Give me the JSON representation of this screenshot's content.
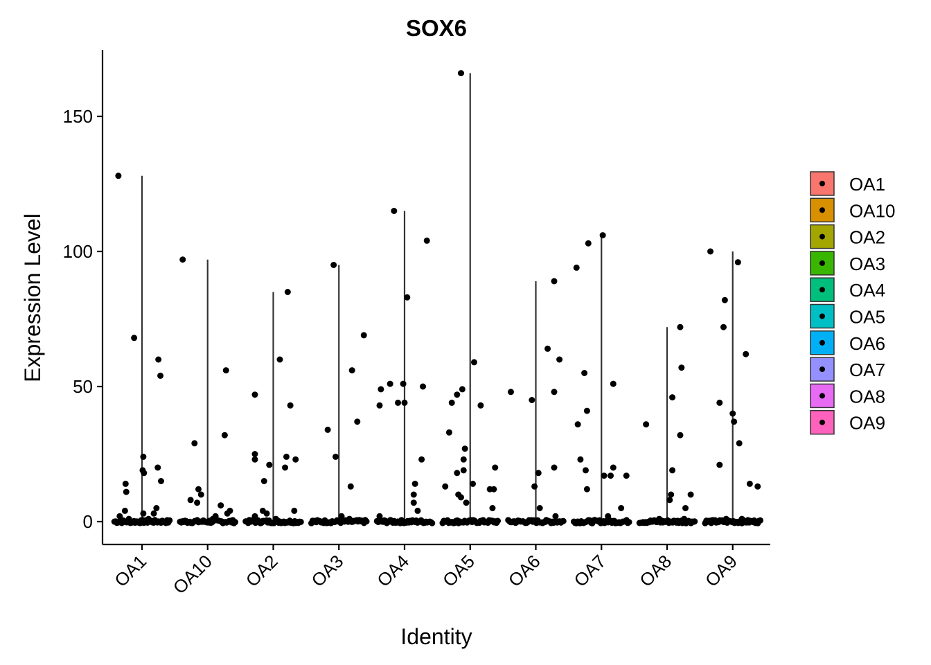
{
  "chart_data": {
    "type": "scatter",
    "title": "SOX6",
    "xlabel": "Identity",
    "ylabel": "Expression Level",
    "ylim": [
      -8,
      175
    ],
    "yticks": [
      0,
      50,
      100,
      150
    ],
    "grid": false,
    "legend_position": "right",
    "categories": [
      "OA1",
      "OA10",
      "OA2",
      "OA3",
      "OA4",
      "OA5",
      "OA6",
      "OA7",
      "OA8",
      "OA9"
    ],
    "colors": [
      "#F8766D",
      "#D89000",
      "#A3A500",
      "#39B600",
      "#00BF7D",
      "#00BFC4",
      "#00B0F6",
      "#9590FF",
      "#E76BF3",
      "#FF62BC"
    ],
    "max_values": [
      128,
      97,
      85,
      95,
      115,
      166,
      89,
      106,
      72,
      100
    ],
    "series": [
      {
        "name": "OA1",
        "points": [
          [
            -0.36,
            128
          ],
          [
            -0.12,
            68
          ],
          [
            -0.25,
            14
          ],
          [
            -0.24,
            11
          ],
          [
            -0.26,
            4
          ],
          [
            -0.34,
            2
          ],
          [
            -0.2,
            1
          ],
          [
            0.02,
            24
          ],
          [
            0.01,
            19
          ],
          [
            0.03,
            18
          ],
          [
            0.25,
            60
          ],
          [
            0.28,
            54
          ],
          [
            0.24,
            20
          ],
          [
            0.29,
            15
          ],
          [
            0.22,
            5
          ],
          [
            0.18,
            3
          ],
          [
            0.02,
            3
          ],
          [
            0.1,
            1
          ]
        ]
      },
      {
        "name": "OA10",
        "points": [
          [
            -0.38,
            97
          ],
          [
            -0.2,
            29
          ],
          [
            -0.14,
            12
          ],
          [
            -0.1,
            10
          ],
          [
            -0.26,
            8
          ],
          [
            -0.16,
            7
          ],
          [
            0.28,
            56
          ],
          [
            0.26,
            32
          ],
          [
            0.2,
            6
          ],
          [
            0.34,
            4
          ],
          [
            0.3,
            3
          ],
          [
            0.12,
            2
          ],
          [
            0.08,
            1
          ]
        ]
      },
      {
        "name": "OA2",
        "points": [
          [
            -0.28,
            47
          ],
          [
            -0.28,
            25
          ],
          [
            -0.28,
            23
          ],
          [
            -0.14,
            15
          ],
          [
            -0.06,
            21
          ],
          [
            -0.16,
            4
          ],
          [
            -0.1,
            3
          ],
          [
            -0.28,
            2
          ],
          [
            0.22,
            85
          ],
          [
            0.1,
            60
          ],
          [
            0.26,
            43
          ],
          [
            0.2,
            24
          ],
          [
            0.34,
            23
          ],
          [
            0.18,
            20
          ],
          [
            0.32,
            4
          ],
          [
            0.04,
            1
          ]
        ]
      },
      {
        "name": "OA3",
        "points": [
          [
            -0.08,
            95
          ],
          [
            -0.17,
            34
          ],
          [
            -0.05,
            24
          ],
          [
            0.2,
            56
          ],
          [
            0.38,
            69
          ],
          [
            0.28,
            37
          ],
          [
            0.18,
            13
          ],
          [
            0.04,
            2
          ],
          [
            0.16,
            1
          ]
        ]
      },
      {
        "name": "OA4",
        "points": [
          [
            -0.38,
            43
          ],
          [
            -0.36,
            49
          ],
          [
            -0.22,
            51
          ],
          [
            -0.16,
            115
          ],
          [
            -0.1,
            44
          ],
          [
            -0.02,
            51
          ],
          [
            0.0,
            44
          ],
          [
            0.04,
            83
          ],
          [
            0.16,
            14
          ],
          [
            0.14,
            10
          ],
          [
            0.14,
            7
          ],
          [
            0.2,
            4
          ],
          [
            0.26,
            23
          ],
          [
            0.28,
            50
          ],
          [
            0.34,
            104
          ],
          [
            -0.38,
            2
          ]
        ]
      },
      {
        "name": "OA5",
        "points": [
          [
            -0.38,
            13
          ],
          [
            -0.32,
            33
          ],
          [
            -0.28,
            44
          ],
          [
            -0.2,
            47
          ],
          [
            -0.2,
            18
          ],
          [
            -0.18,
            10
          ],
          [
            -0.14,
            9
          ],
          [
            -0.12,
            49
          ],
          [
            -0.1,
            23
          ],
          [
            -0.1,
            19
          ],
          [
            -0.08,
            27
          ],
          [
            -0.06,
            7
          ],
          [
            -0.14,
            166
          ],
          [
            0.06,
            59
          ],
          [
            0.04,
            14
          ],
          [
            0.16,
            43
          ],
          [
            0.3,
            12
          ],
          [
            0.36,
            12
          ],
          [
            0.38,
            20
          ],
          [
            0.34,
            5
          ]
        ]
      },
      {
        "name": "OA6",
        "points": [
          [
            -0.38,
            48
          ],
          [
            -0.06,
            45
          ],
          [
            -0.02,
            13
          ],
          [
            0.04,
            18
          ],
          [
            0.06,
            5
          ],
          [
            0.18,
            64
          ],
          [
            0.28,
            89
          ],
          [
            0.36,
            60
          ],
          [
            0.28,
            48
          ],
          [
            0.28,
            20
          ],
          [
            0.3,
            2
          ]
        ]
      },
      {
        "name": "OA7",
        "points": [
          [
            -0.38,
            94
          ],
          [
            -0.36,
            36
          ],
          [
            -0.32,
            23
          ],
          [
            -0.26,
            55
          ],
          [
            -0.22,
            41
          ],
          [
            -0.24,
            19
          ],
          [
            -0.22,
            12
          ],
          [
            -0.2,
            103
          ],
          [
            0.02,
            106
          ],
          [
            0.04,
            17
          ],
          [
            0.14,
            17
          ],
          [
            0.18,
            51
          ],
          [
            0.18,
            20
          ],
          [
            0.3,
            5
          ],
          [
            0.38,
            17
          ],
          [
            0.1,
            2
          ]
        ]
      },
      {
        "name": "OA8",
        "points": [
          [
            -0.32,
            36
          ],
          [
            0.04,
            8
          ],
          [
            0.06,
            10
          ],
          [
            0.08,
            46
          ],
          [
            0.08,
            19
          ],
          [
            0.2,
            72
          ],
          [
            0.22,
            57
          ],
          [
            0.2,
            32
          ],
          [
            0.36,
            10
          ],
          [
            0.28,
            5
          ],
          [
            0.26,
            1
          ],
          [
            -0.12,
            1
          ]
        ]
      },
      {
        "name": "OA9",
        "points": [
          [
            -0.34,
            100
          ],
          [
            -0.2,
            44
          ],
          [
            -0.2,
            21
          ],
          [
            -0.14,
            72
          ],
          [
            -0.12,
            82
          ],
          [
            0.0,
            40
          ],
          [
            0.02,
            37
          ],
          [
            0.08,
            96
          ],
          [
            0.1,
            29
          ],
          [
            0.2,
            62
          ],
          [
            0.26,
            14
          ],
          [
            0.38,
            13
          ],
          [
            -0.1,
            1
          ],
          [
            0.14,
            1
          ]
        ]
      }
    ]
  }
}
